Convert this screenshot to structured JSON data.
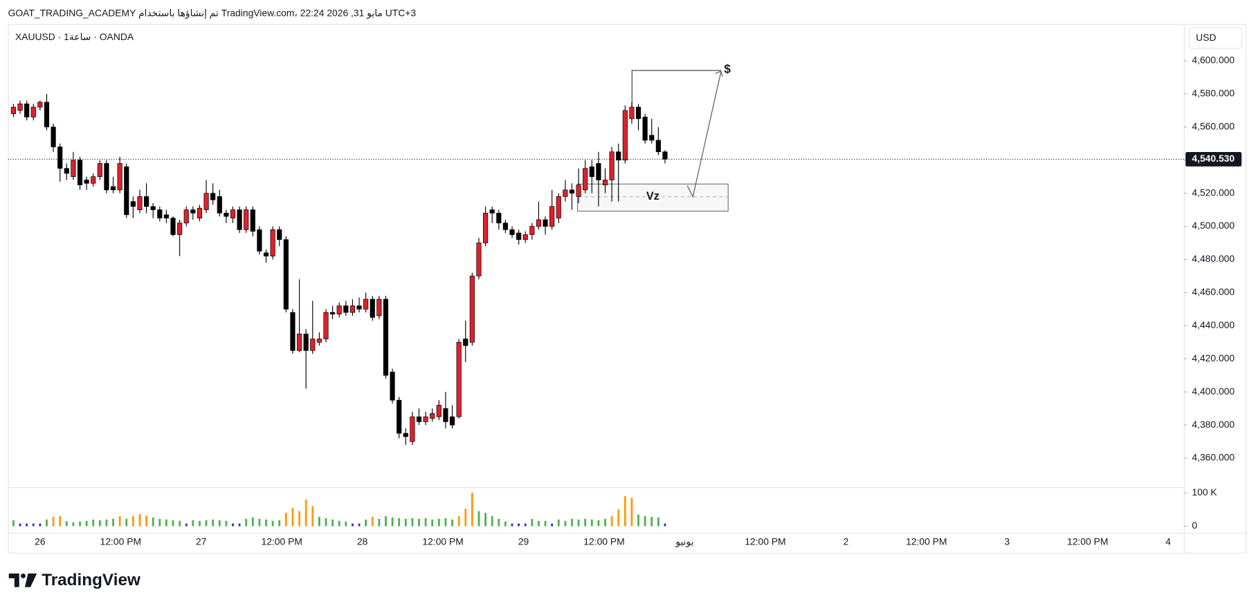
{
  "header": {
    "caption": "GOAT_TRADING_ACADEMY تم إنشاؤها باستخدام TradingView.com، 22:24 2026 ,31 مايو UTC+3"
  },
  "chart_data": {
    "type": "candlestick",
    "title": "XAUUSD · 1ساعة · OANDA",
    "currency": "USD",
    "up_color": "#e0202b",
    "down_color": "#000000",
    "open": [
      4568,
      4570,
      4574,
      4566,
      4572,
      4575,
      4560,
      4548,
      4535,
      4530,
      4540,
      4528,
      4526,
      4530,
      4538,
      4524,
      4522,
      4536,
      4515,
      4510,
      4518,
      4512,
      4510,
      4507,
      4505,
      4495,
      4502,
      4510,
      4505,
      4510,
      4520,
      4518,
      4508,
      4505,
      4510,
      4498,
      4510,
      4498,
      4484,
      4482,
      4498,
      4492,
      4448,
      4425,
      4435,
      4425,
      4430,
      4432,
      4448,
      4447,
      4452,
      4448,
      4452,
      4450,
      4456,
      4446,
      4456,
      4412,
      4395,
      4375,
      4370,
      4385,
      4382,
      4384,
      4385,
      4390,
      4385,
      4385,
      4432,
      4430,
      4470,
      4490,
      4510,
      4508,
      4502,
      4498,
      4496,
      4492,
      4495,
      4500,
      4504,
      4500,
      4505,
      4518,
      4522,
      4518,
      4522,
      4536,
      4538,
      4525,
      4528,
      4545,
      4540,
      4565,
      4572,
      4566,
      4555,
      4552,
      4545
    ],
    "high": [
      4574,
      4576,
      4576,
      4574,
      4576,
      4580,
      4562,
      4550,
      4538,
      4545,
      4542,
      4530,
      4532,
      4540,
      4540,
      4530,
      4542,
      4538,
      4518,
      4522,
      4526,
      4514,
      4512,
      4510,
      4506,
      4504,
      4512,
      4512,
      4513,
      4528,
      4526,
      4522,
      4510,
      4512,
      4512,
      4512,
      4512,
      4500,
      4486,
      4500,
      4500,
      4494,
      4450,
      4468,
      4438,
      4455,
      4436,
      4450,
      4452,
      4454,
      4455,
      4456,
      4457,
      4460,
      4458,
      4458,
      4458,
      4414,
      4397,
      4378,
      4388,
      4390,
      4388,
      4390,
      4395,
      4400,
      4392,
      4432,
      4443,
      4472,
      4493,
      4512,
      4512,
      4510,
      4504,
      4500,
      4498,
      4497,
      4502,
      4515,
      4506,
      4522,
      4520,
      4528,
      4526,
      4535,
      4540,
      4540,
      4545,
      4535,
      4548,
      4550,
      4573,
      4575,
      4574,
      4568,
      4565,
      4560,
      4546
    ],
    "low": [
      4566,
      4568,
      4564,
      4564,
      4570,
      4558,
      4545,
      4527,
      4528,
      4528,
      4522,
      4522,
      4524,
      4528,
      4520,
      4520,
      4520,
      4505,
      4505,
      4508,
      4508,
      4505,
      4503,
      4502,
      4494,
      4482,
      4500,
      4504,
      4503,
      4508,
      4513,
      4506,
      4502,
      4502,
      4496,
      4496,
      4494,
      4483,
      4478,
      4480,
      4488,
      4448,
      4423,
      4424,
      4402,
      4423,
      4428,
      4430,
      4444,
      4445,
      4446,
      4446,
      4448,
      4448,
      4443,
      4444,
      4408,
      4393,
      4372,
      4368,
      4368,
      4380,
      4380,
      4382,
      4383,
      4378,
      4378,
      4384,
      4418,
      4428,
      4468,
      4488,
      4502,
      4498,
      4496,
      4493,
      4489,
      4490,
      4492,
      4498,
      4495,
      4498,
      4502,
      4515,
      4510,
      4514,
      4520,
      4520,
      4512,
      4520,
      4515,
      4515,
      4538,
      4562,
      4558,
      4550,
      4550,
      4543,
      4538
    ],
    "close": [
      4572,
      4574,
      4566,
      4572,
      4575,
      4560,
      4548,
      4535,
      4532,
      4540,
      4525,
      4526,
      4530,
      4538,
      4522,
      4522,
      4538,
      4507,
      4512,
      4518,
      4512,
      4510,
      4505,
      4505,
      4495,
      4502,
      4510,
      4508,
      4511,
      4520,
      4516,
      4508,
      4506,
      4510,
      4498,
      4510,
      4497,
      4485,
      4482,
      4498,
      4492,
      4450,
      4425,
      4435,
      4425,
      4432,
      4432,
      4448,
      4447,
      4452,
      4448,
      4452,
      4450,
      4456,
      4445,
      4456,
      4410,
      4395,
      4375,
      4373,
      4385,
      4382,
      4385,
      4387,
      4392,
      4382,
      4380,
      4430,
      4428,
      4470,
      4490,
      4508,
      4508,
      4502,
      4498,
      4495,
      4492,
      4495,
      4500,
      4504,
      4500,
      4512,
      4518,
      4522,
      4520,
      4525,
      4535,
      4530,
      4528,
      4528,
      4545,
      4540,
      4570,
      4572,
      4565,
      4552,
      4552,
      4545,
      4540.53
    ],
    "ylim": [
      4342.5,
      4622.2
    ],
    "yticks": [
      {
        "value": 4360,
        "label": "4,360.000"
      },
      {
        "value": 4380,
        "label": "4,380.000"
      },
      {
        "value": 4400,
        "label": "4,400.000"
      },
      {
        "value": 4420,
        "label": "4,420.000"
      },
      {
        "value": 4440,
        "label": "4,440.000"
      },
      {
        "value": 4460,
        "label": "4,460.000"
      },
      {
        "value": 4480,
        "label": "4,480.000"
      },
      {
        "value": 4500,
        "label": "4,500.000"
      },
      {
        "value": 4520,
        "label": "4,520.000"
      },
      {
        "value": 4540,
        "label": "4,540.000"
      },
      {
        "value": 4560,
        "label": "4,560.000"
      },
      {
        "value": 4580,
        "label": "4,580.000"
      },
      {
        "value": 4600,
        "label": "4,600.000"
      }
    ],
    "last_price": {
      "value": 4540.53,
      "label": "4,540.530"
    },
    "time_labels": [
      "26",
      "12:00 PM",
      "27",
      "12:00 PM",
      "28",
      "12:00 PM",
      "29",
      "12:00 PM",
      "يونيو",
      "12:00 PM",
      "2",
      "12:00 PM",
      "3",
      "12:00 PM",
      "4"
    ],
    "volume": {
      "values": [
        18000,
        8000,
        8000,
        8000,
        8000,
        20000,
        28000,
        30000,
        15000,
        12000,
        14000,
        16000,
        20000,
        18000,
        20000,
        22000,
        30000,
        22000,
        30000,
        36000,
        32000,
        26000,
        22000,
        20000,
        18000,
        16000,
        8000,
        18000,
        16000,
        18000,
        20000,
        18000,
        16000,
        8000,
        8000,
        22000,
        26000,
        22000,
        20000,
        16000,
        18000,
        40000,
        55000,
        45000,
        80000,
        60000,
        28000,
        24000,
        20000,
        16000,
        14000,
        8000,
        8000,
        20000,
        28000,
        22000,
        30000,
        26000,
        24000,
        22000,
        24000,
        22000,
        24000,
        20000,
        22000,
        24000,
        20000,
        30000,
        52000,
        100000,
        45000,
        40000,
        30000,
        22000,
        14000,
        8000,
        8000,
        8000,
        22000,
        16000,
        16000,
        8000,
        20000,
        16000,
        22000,
        20000,
        22000,
        20000,
        18000,
        22000,
        30000,
        50000,
        90000,
        85000,
        35000,
        30000,
        28000,
        26000,
        8000
      ],
      "colors": [
        "#4caf50",
        "#2a2eb8",
        "#2a2eb8",
        "#2a2eb8",
        "#2a2eb8",
        "#4caf50",
        "#ff9800",
        "#ff9800",
        "#4caf50",
        "#4caf50",
        "#4caf50",
        "#4caf50",
        "#4caf50",
        "#4caf50",
        "#4caf50",
        "#4caf50",
        "#ff9800",
        "#4caf50",
        "#ff9800",
        "#ff9800",
        "#ff9800",
        "#4caf50",
        "#4caf50",
        "#4caf50",
        "#4caf50",
        "#4caf50",
        "#2a2eb8",
        "#4caf50",
        "#4caf50",
        "#4caf50",
        "#4caf50",
        "#4caf50",
        "#4caf50",
        "#2a2eb8",
        "#2a2eb8",
        "#4caf50",
        "#4caf50",
        "#4caf50",
        "#4caf50",
        "#4caf50",
        "#4caf50",
        "#ff9800",
        "#ff9800",
        "#ff9800",
        "#ff9800",
        "#ff9800",
        "#4caf50",
        "#4caf50",
        "#4caf50",
        "#4caf50",
        "#4caf50",
        "#2a2eb8",
        "#2a2eb8",
        "#4caf50",
        "#ff9800",
        "#4caf50",
        "#4caf50",
        "#4caf50",
        "#4caf50",
        "#4caf50",
        "#4caf50",
        "#4caf50",
        "#4caf50",
        "#4caf50",
        "#4caf50",
        "#4caf50",
        "#4caf50",
        "#ff9800",
        "#ff9800",
        "#ff9800",
        "#4caf50",
        "#4caf50",
        "#4caf50",
        "#4caf50",
        "#4caf50",
        "#2a2eb8",
        "#2a2eb8",
        "#2a2eb8",
        "#4caf50",
        "#4caf50",
        "#4caf50",
        "#2a2eb8",
        "#4caf50",
        "#4caf50",
        "#4caf50",
        "#4caf50",
        "#4caf50",
        "#4caf50",
        "#4caf50",
        "#4caf50",
        "#ff9800",
        "#ff9800",
        "#ff9800",
        "#ff9800",
        "#4caf50",
        "#4caf50",
        "#4caf50",
        "#4caf50",
        "#2a2eb8"
      ],
      "ylim": [
        -19500,
        117000
      ],
      "yticks": [
        {
          "value": 100000,
          "label": "100 K"
        },
        0
      ]
    },
    "annotations": [
      "Vz",
      "$"
    ]
  },
  "footer": {
    "brand": "TradingView"
  }
}
